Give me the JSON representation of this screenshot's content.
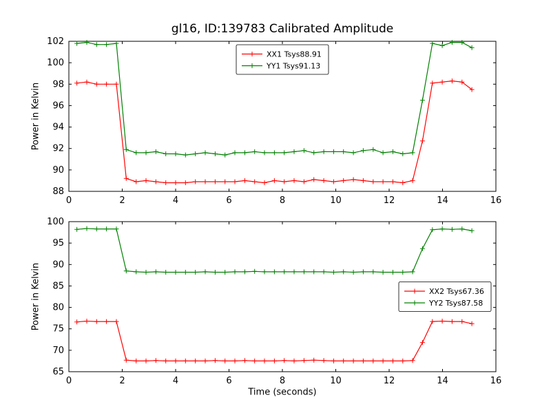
{
  "figure": {
    "title": "gl16, ID:139783 Calibrated Amplitude",
    "background": "#ffffff",
    "axis_color": "#000000"
  },
  "chart_data": [
    {
      "type": "line",
      "ylabel": "Power in Kelvin",
      "xlabel": "",
      "xlim": [
        0,
        16
      ],
      "ylim": [
        88,
        102
      ],
      "xticks": [
        0,
        2,
        4,
        6,
        8,
        10,
        12,
        14,
        16
      ],
      "yticks": [
        88,
        90,
        92,
        94,
        96,
        98,
        100,
        102
      ],
      "grid": false,
      "legend": {
        "position": "upper-center",
        "entries": [
          "XX1 Tsys88.91",
          "YY1 Tsys91.13"
        ]
      },
      "x": [
        0.3,
        0.67,
        1.04,
        1.41,
        1.78,
        2.15,
        2.52,
        2.89,
        3.26,
        3.63,
        4,
        4.37,
        4.74,
        5.11,
        5.48,
        5.85,
        6.22,
        6.59,
        6.96,
        7.33,
        7.7,
        8.07,
        8.44,
        8.81,
        9.18,
        9.55,
        9.92,
        10.29,
        10.66,
        11.03,
        11.4,
        11.77,
        12.14,
        12.51,
        12.88,
        13.25,
        13.62,
        13.99,
        14.36,
        14.73,
        15.1
      ],
      "series": [
        {
          "name": "XX1 Tsys88.91",
          "color": "#ff0000",
          "marker": "+",
          "values": [
            98.1,
            98.2,
            98.0,
            98.0,
            98.0,
            89.2,
            88.9,
            89.0,
            88.9,
            88.8,
            88.8,
            88.8,
            88.9,
            88.9,
            88.9,
            88.9,
            88.9,
            89.0,
            88.9,
            88.8,
            89.0,
            88.9,
            89.0,
            88.9,
            89.1,
            89.0,
            88.9,
            89.0,
            89.1,
            89.0,
            88.9,
            88.9,
            88.9,
            88.8,
            89.0,
            92.7,
            98.1,
            98.2,
            98.3,
            98.2,
            97.5
          ]
        },
        {
          "name": "YY1 Tsys91.13",
          "color": "#008000",
          "marker": "+",
          "values": [
            101.8,
            101.9,
            101.7,
            101.7,
            101.8,
            91.9,
            91.6,
            91.6,
            91.7,
            91.5,
            91.5,
            91.4,
            91.5,
            91.6,
            91.5,
            91.4,
            91.6,
            91.6,
            91.7,
            91.6,
            91.6,
            91.6,
            91.7,
            91.8,
            91.6,
            91.7,
            91.7,
            91.7,
            91.6,
            91.8,
            91.9,
            91.6,
            91.7,
            91.5,
            91.6,
            96.5,
            101.8,
            101.6,
            101.9,
            101.9,
            101.4
          ]
        }
      ]
    },
    {
      "type": "line",
      "ylabel": "Power in Kelvin",
      "xlabel": "Time (seconds)",
      "xlim": [
        0,
        16
      ],
      "ylim": [
        65,
        100
      ],
      "xticks": [
        0,
        2,
        4,
        6,
        8,
        10,
        12,
        14,
        16
      ],
      "yticks": [
        65,
        70,
        75,
        80,
        85,
        90,
        95,
        100
      ],
      "grid": false,
      "legend": {
        "position": "center-right",
        "entries": [
          "XX2 Tsys67.36",
          "YY2 Tsys87.58"
        ]
      },
      "x": [
        0.3,
        0.67,
        1.04,
        1.41,
        1.78,
        2.15,
        2.52,
        2.89,
        3.26,
        3.63,
        4,
        4.37,
        4.74,
        5.11,
        5.48,
        5.85,
        6.22,
        6.59,
        6.96,
        7.33,
        7.7,
        8.07,
        8.44,
        8.81,
        9.18,
        9.55,
        9.92,
        10.29,
        10.66,
        11.03,
        11.4,
        11.77,
        12.14,
        12.51,
        12.88,
        13.25,
        13.62,
        13.99,
        14.36,
        14.73,
        15.1
      ],
      "series": [
        {
          "name": "XX2 Tsys67.36",
          "color": "#ff0000",
          "marker": "+",
          "values": [
            76.6,
            76.8,
            76.7,
            76.7,
            76.7,
            67.7,
            67.5,
            67.5,
            67.6,
            67.5,
            67.5,
            67.5,
            67.5,
            67.5,
            67.6,
            67.5,
            67.5,
            67.6,
            67.5,
            67.5,
            67.5,
            67.6,
            67.5,
            67.6,
            67.7,
            67.6,
            67.5,
            67.5,
            67.5,
            67.5,
            67.5,
            67.5,
            67.5,
            67.5,
            67.6,
            71.8,
            76.7,
            76.8,
            76.7,
            76.7,
            76.2
          ]
        },
        {
          "name": "YY2 Tsys87.58",
          "color": "#008000",
          "marker": "+",
          "values": [
            98.2,
            98.4,
            98.3,
            98.3,
            98.3,
            88.5,
            88.3,
            88.2,
            88.3,
            88.2,
            88.2,
            88.2,
            88.2,
            88.3,
            88.2,
            88.2,
            88.3,
            88.3,
            88.4,
            88.3,
            88.3,
            88.3,
            88.3,
            88.3,
            88.3,
            88.3,
            88.2,
            88.3,
            88.2,
            88.3,
            88.3,
            88.2,
            88.2,
            88.2,
            88.3,
            93.7,
            98.1,
            98.3,
            98.2,
            98.3,
            97.9
          ]
        }
      ]
    }
  ]
}
